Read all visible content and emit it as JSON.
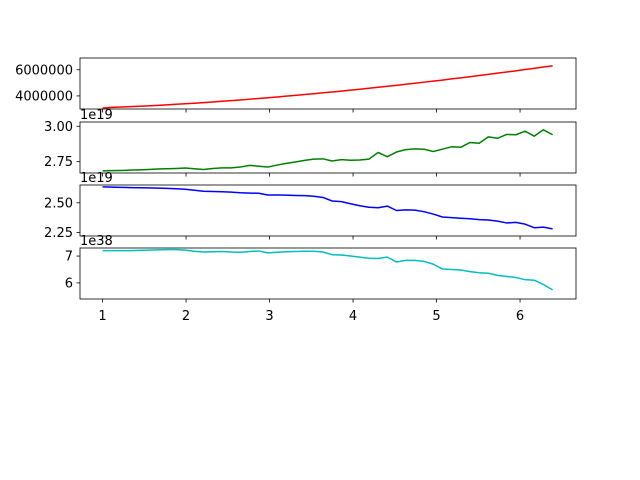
{
  "chart_data": [
    {
      "type": "line",
      "color": "#ff0000",
      "offset_text": "",
      "ylim": [
        3000000,
        6900000
      ],
      "yticks": [
        4000000,
        6000000
      ],
      "ytick_labels": [
        "4000000",
        "6000000"
      ],
      "x": [
        1.0,
        1.11,
        1.22,
        1.33,
        1.44,
        1.55,
        1.66,
        1.77,
        1.88,
        1.99,
        2.1,
        2.21,
        2.32,
        2.43,
        2.54,
        2.65,
        2.76,
        2.87,
        2.98,
        3.09,
        3.2,
        3.31,
        3.42,
        3.53,
        3.64,
        3.75,
        3.86,
        3.97,
        4.08,
        4.19,
        4.3,
        4.41,
        4.52,
        4.63,
        4.74,
        4.85,
        4.96,
        5.07,
        5.18,
        5.29,
        5.4,
        5.51,
        5.62,
        5.73,
        5.84,
        5.95,
        6.06,
        6.17,
        6.28,
        6.39
      ],
      "values": [
        3070000,
        3120000,
        3150000,
        3180000,
        3210000,
        3240000,
        3280000,
        3320000,
        3360000,
        3400000,
        3440000,
        3490000,
        3540000,
        3590000,
        3640000,
        3690000,
        3750000,
        3800000,
        3860000,
        3920000,
        3980000,
        4040000,
        4110000,
        4170000,
        4240000,
        4300000,
        4370000,
        4440000,
        4510000,
        4590000,
        4660000,
        4740000,
        4810000,
        4890000,
        4970000,
        5050000,
        5130000,
        5210000,
        5300000,
        5380000,
        5470000,
        5560000,
        5650000,
        5740000,
        5830000,
        5920000,
        6020000,
        6110000,
        6210000,
        6300000
      ]
    },
    {
      "type": "line",
      "color": "#008000",
      "offset_text": "1e19",
      "ylim": [
        2.67,
        3.03
      ],
      "yticks": [
        2.75,
        3.0
      ],
      "ytick_labels": [
        "2.75",
        "3.00"
      ],
      "x": [
        1.0,
        1.11,
        1.22,
        1.33,
        1.44,
        1.55,
        1.66,
        1.77,
        1.88,
        1.99,
        2.1,
        2.21,
        2.32,
        2.43,
        2.54,
        2.65,
        2.76,
        2.87,
        2.98,
        3.09,
        3.2,
        3.31,
        3.42,
        3.53,
        3.64,
        3.75,
        3.86,
        3.97,
        4.08,
        4.19,
        4.3,
        4.41,
        4.52,
        4.63,
        4.74,
        4.85,
        4.96,
        5.07,
        5.18,
        5.29,
        5.4,
        5.51,
        5.62,
        5.73,
        5.84,
        5.95,
        6.06,
        6.17,
        6.28,
        6.39
      ],
      "values": [
        2.685,
        2.687,
        2.688,
        2.69,
        2.692,
        2.695,
        2.698,
        2.7,
        2.702,
        2.705,
        2.7,
        2.695,
        2.702,
        2.706,
        2.706,
        2.712,
        2.724,
        2.718,
        2.712,
        2.726,
        2.738,
        2.748,
        2.759,
        2.768,
        2.77,
        2.755,
        2.764,
        2.76,
        2.762,
        2.768,
        2.815,
        2.785,
        2.818,
        2.835,
        2.84,
        2.838,
        2.822,
        2.838,
        2.855,
        2.852,
        2.885,
        2.88,
        2.925,
        2.915,
        2.942,
        2.94,
        2.965,
        2.93,
        2.975,
        2.94
      ]
    },
    {
      "type": "line",
      "color": "#0000ff",
      "offset_text": "1e19",
      "ylim": [
        2.22,
        2.65
      ],
      "yticks": [
        2.25,
        2.5
      ],
      "ytick_labels": [
        "2.25",
        "2.50"
      ],
      "x": [
        1.0,
        1.11,
        1.22,
        1.33,
        1.44,
        1.55,
        1.66,
        1.77,
        1.88,
        1.99,
        2.1,
        2.21,
        2.32,
        2.43,
        2.54,
        2.65,
        2.76,
        2.87,
        2.98,
        3.09,
        3.2,
        3.31,
        3.42,
        3.53,
        3.64,
        3.75,
        3.86,
        3.97,
        4.08,
        4.19,
        4.3,
        4.41,
        4.52,
        4.63,
        4.74,
        4.85,
        4.96,
        5.07,
        5.18,
        5.29,
        5.4,
        5.51,
        5.62,
        5.73,
        5.84,
        5.95,
        6.06,
        6.17,
        6.28,
        6.39
      ],
      "values": [
        2.634,
        2.632,
        2.63,
        2.628,
        2.627,
        2.626,
        2.624,
        2.622,
        2.618,
        2.614,
        2.606,
        2.597,
        2.595,
        2.593,
        2.59,
        2.585,
        2.582,
        2.58,
        2.566,
        2.566,
        2.565,
        2.562,
        2.56,
        2.555,
        2.545,
        2.515,
        2.51,
        2.492,
        2.475,
        2.462,
        2.458,
        2.472,
        2.435,
        2.44,
        2.438,
        2.425,
        2.405,
        2.38,
        2.375,
        2.37,
        2.365,
        2.358,
        2.355,
        2.345,
        2.33,
        2.335,
        2.32,
        2.29,
        2.295,
        2.28
      ]
    },
    {
      "type": "line",
      "color": "#00bfbf",
      "offset_text": "1e38",
      "ylim": [
        5.4,
        7.3
      ],
      "yticks": [
        6.0,
        7.0
      ],
      "ytick_labels": [
        "6",
        "7"
      ],
      "x": [
        1.0,
        1.11,
        1.22,
        1.33,
        1.44,
        1.55,
        1.66,
        1.77,
        1.88,
        1.99,
        2.1,
        2.21,
        2.32,
        2.43,
        2.54,
        2.65,
        2.76,
        2.87,
        2.98,
        3.09,
        3.2,
        3.31,
        3.42,
        3.53,
        3.64,
        3.75,
        3.86,
        3.97,
        4.08,
        4.19,
        4.3,
        4.41,
        4.52,
        4.63,
        4.74,
        4.85,
        4.96,
        5.07,
        5.18,
        5.29,
        5.4,
        5.51,
        5.62,
        5.73,
        5.84,
        5.95,
        6.06,
        6.17,
        6.28,
        6.39
      ],
      "values": [
        7.2,
        7.2,
        7.2,
        7.2,
        7.21,
        7.22,
        7.23,
        7.24,
        7.24,
        7.22,
        7.18,
        7.15,
        7.16,
        7.17,
        7.15,
        7.14,
        7.17,
        7.19,
        7.12,
        7.14,
        7.16,
        7.17,
        7.18,
        7.18,
        7.15,
        7.05,
        7.04,
        7.0,
        6.96,
        6.92,
        6.91,
        6.96,
        6.78,
        6.84,
        6.84,
        6.8,
        6.7,
        6.52,
        6.5,
        6.48,
        6.42,
        6.38,
        6.36,
        6.28,
        6.24,
        6.2,
        6.12,
        6.1,
        5.94,
        5.74
      ]
    }
  ],
  "xaxis": {
    "xlim": [
      0.73,
      6.67
    ],
    "xticks": [
      1,
      2,
      3,
      4,
      5,
      6
    ],
    "xtick_labels": [
      "1",
      "2",
      "3",
      "4",
      "5",
      "6"
    ]
  }
}
